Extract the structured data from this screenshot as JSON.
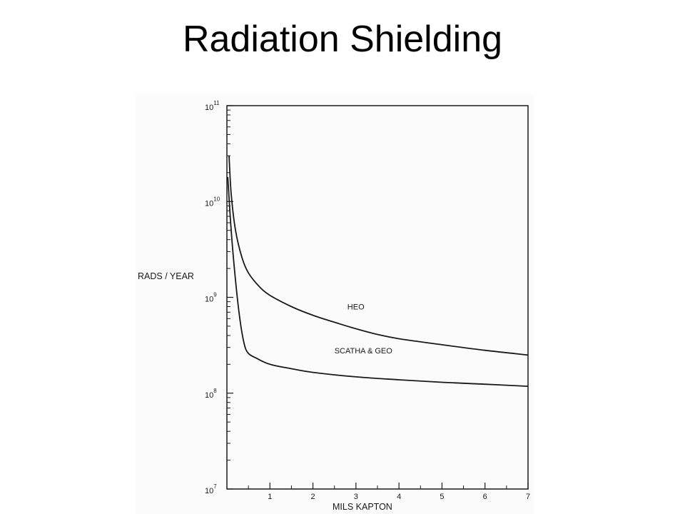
{
  "slide": {
    "title": "Radiation Shielding"
  },
  "colors": {
    "background": "#ffffff",
    "ink": "#1a1a1a",
    "scan_panel": "#fbfbfb"
  },
  "chart_data": {
    "type": "line",
    "scale_y": "log",
    "xlabel": "MILS KAPTON",
    "ylabel": "RADS / YEAR",
    "xlim": [
      0,
      7
    ],
    "ylim": [
      10000000,
      100000000000
    ],
    "x_ticks": [
      1,
      2,
      3,
      4,
      5,
      6,
      7
    ],
    "y_ticks": [
      {
        "base": "10",
        "exp": "11",
        "value": 100000000000
      },
      {
        "base": "10",
        "exp": "10",
        "value": 10000000000
      },
      {
        "base": "10",
        "exp": "9",
        "value": 1000000000
      },
      {
        "base": "10",
        "exp": "8",
        "value": 100000000
      },
      {
        "base": "10",
        "exp": "7",
        "value": 10000000
      }
    ],
    "grid": false,
    "legend": "none (inline labels)",
    "series": [
      {
        "name": "HEO",
        "label_at": [
          2.8,
          750000000
        ],
        "points": [
          [
            0.05,
            30000000000
          ],
          [
            0.1,
            12000000000
          ],
          [
            0.2,
            5000000000
          ],
          [
            0.35,
            2600000000
          ],
          [
            0.5,
            1800000000
          ],
          [
            0.75,
            1300000000
          ],
          [
            1.0,
            1050000000
          ],
          [
            1.5,
            800000000
          ],
          [
            2.0,
            650000000
          ],
          [
            2.5,
            550000000
          ],
          [
            3.0,
            470000000
          ],
          [
            3.5,
            410000000
          ],
          [
            4.0,
            370000000
          ],
          [
            5.0,
            320000000
          ],
          [
            6.0,
            280000000
          ],
          [
            7.0,
            250000000
          ]
        ]
      },
      {
        "name": "SCATHA & GEO",
        "label_at": [
          2.5,
          260000000
        ],
        "points": [
          [
            0.02,
            18000000000
          ],
          [
            0.1,
            5000000000
          ],
          [
            0.2,
            1500000000
          ],
          [
            0.3,
            600000000
          ],
          [
            0.4,
            330000000
          ],
          [
            0.5,
            260000000
          ],
          [
            0.7,
            230000000
          ],
          [
            1.0,
            200000000
          ],
          [
            1.5,
            180000000
          ],
          [
            2.0,
            165000000
          ],
          [
            3.0,
            148000000
          ],
          [
            4.0,
            138000000
          ],
          [
            5.0,
            130000000
          ],
          [
            6.0,
            124000000
          ],
          [
            7.0,
            118000000
          ]
        ]
      }
    ]
  }
}
